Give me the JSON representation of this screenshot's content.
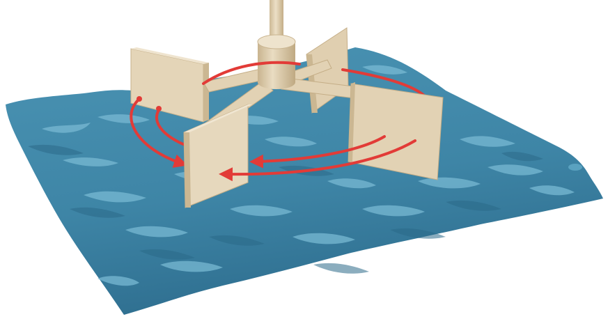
{
  "scene": {
    "subject": "paddle-mixer-in-water",
    "icons": {
      "water": "water-surface-icon",
      "paddle": "paddle-blade-icon",
      "shaft": "shaft-icon",
      "arrow": "rotation-arrow-icon"
    },
    "colors": {
      "background": "#ffffff",
      "water_base": "#3f87a8",
      "water_dark": "#2a6b8c",
      "water_light": "#7cc0d8",
      "paddle_face": "#e2d2b4",
      "paddle_side": "#cdb995",
      "paddle_edge": "#bba57f",
      "arrow": "#e23b37"
    },
    "paddle_count": 4,
    "rotation_arrow_count": 4
  }
}
